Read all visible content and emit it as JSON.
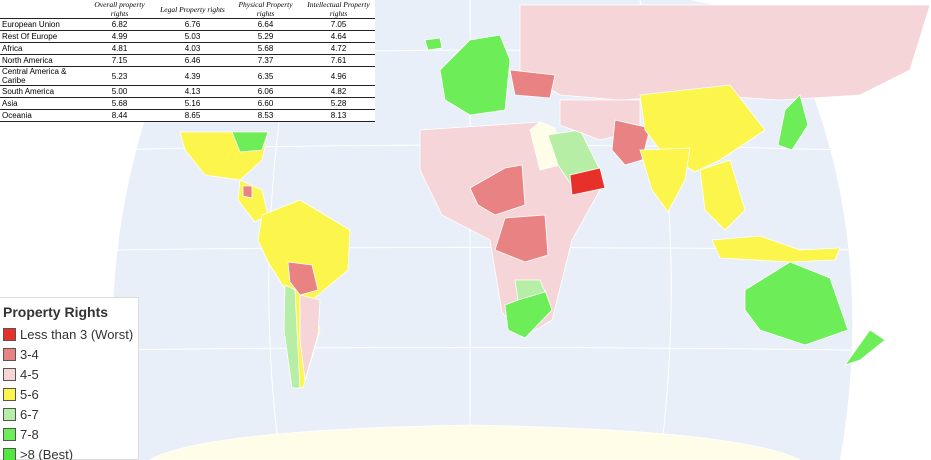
{
  "table": {
    "header": [
      "Overall property rights",
      "Legal Property rights",
      "Physical Property rights",
      "Intellectual Property rights"
    ],
    "rows": [
      [
        "European Union",
        "6.82",
        "6.76",
        "6.64",
        "7.05"
      ],
      [
        "Rest Of Europe",
        "4.99",
        "5.03",
        "5.29",
        "4.64"
      ],
      [
        "Africa",
        "4.81",
        "4.03",
        "5.68",
        "4.72"
      ],
      [
        "North America",
        "7.15",
        "6.46",
        "7.37",
        "7.61"
      ],
      [
        "Central America & Caribe",
        "5.23",
        "4.39",
        "6.35",
        "4.96"
      ],
      [
        "South America",
        "5.00",
        "4.13",
        "6.06",
        "4.82"
      ],
      [
        "Asia",
        "5.68",
        "5.16",
        "6.60",
        "5.28"
      ],
      [
        "Oceania",
        "8.44",
        "8.65",
        "8.53",
        "8.13"
      ]
    ]
  },
  "legend": {
    "title": "Property Rights",
    "items": [
      {
        "label": "Less than 3 (Worst)",
        "color": "#e8302a"
      },
      {
        "label": "3-4",
        "color": "#e98282"
      },
      {
        "label": "4-5",
        "color": "#f5d5d8"
      },
      {
        "label": "5-6",
        "color": "#fbf54c"
      },
      {
        "label": "6-7",
        "color": "#b7eea5"
      },
      {
        "label": "7-8",
        "color": "#6ded57"
      },
      {
        "label": ">8 (Best)",
        "color": "#52e63f"
      }
    ]
  }
}
